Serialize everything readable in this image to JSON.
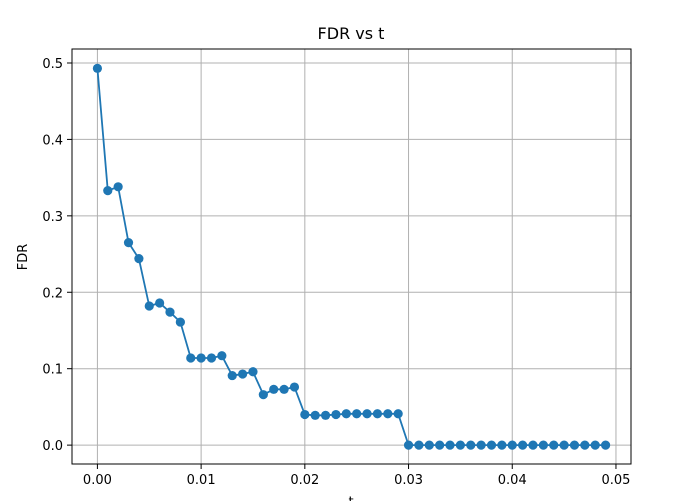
{
  "chart_data": {
    "type": "line",
    "title": "FDR vs t",
    "xlabel": "t",
    "ylabel": "FDR",
    "xlim": [
      -0.00245,
      0.05145
    ],
    "ylim": [
      -0.0247,
      0.5183
    ],
    "grid": true,
    "marker": "circle",
    "color": "#1f77b4",
    "x_ticks": [
      0.0,
      0.01,
      0.02,
      0.03,
      0.04,
      0.05
    ],
    "x_tick_labels": [
      "0.00",
      "0.01",
      "0.02",
      "0.03",
      "0.04",
      "0.05"
    ],
    "y_ticks": [
      0.0,
      0.1,
      0.2,
      0.3,
      0.4,
      0.5
    ],
    "y_tick_labels": [
      "0.0",
      "0.1",
      "0.2",
      "0.3",
      "0.4",
      "0.5"
    ],
    "series": [
      {
        "x": [
          0.0,
          0.001,
          0.002,
          0.003,
          0.004,
          0.005,
          0.006,
          0.007,
          0.008,
          0.009,
          0.01,
          0.011,
          0.012,
          0.013,
          0.014,
          0.015,
          0.016,
          0.017,
          0.018,
          0.019,
          0.02,
          0.021,
          0.022,
          0.023,
          0.024,
          0.025,
          0.026,
          0.027,
          0.028,
          0.029,
          0.03,
          0.031,
          0.032,
          0.033,
          0.034,
          0.035,
          0.036,
          0.037,
          0.038,
          0.039,
          0.04,
          0.041,
          0.042,
          0.043,
          0.044,
          0.045,
          0.046,
          0.047,
          0.048,
          0.049
        ],
        "y": [
          0.493,
          0.333,
          0.338,
          0.265,
          0.244,
          0.182,
          0.186,
          0.174,
          0.161,
          0.114,
          0.114,
          0.114,
          0.117,
          0.091,
          0.093,
          0.096,
          0.066,
          0.073,
          0.073,
          0.076,
          0.04,
          0.039,
          0.039,
          0.04,
          0.041,
          0.041,
          0.041,
          0.041,
          0.041,
          0.041,
          0.0,
          0.0,
          0.0,
          0.0,
          0.0,
          0.0,
          0.0,
          0.0,
          0.0,
          0.0,
          0.0,
          0.0,
          0.0,
          0.0,
          0.0,
          0.0,
          0.0,
          0.0,
          0.0,
          0.0
        ]
      }
    ]
  }
}
